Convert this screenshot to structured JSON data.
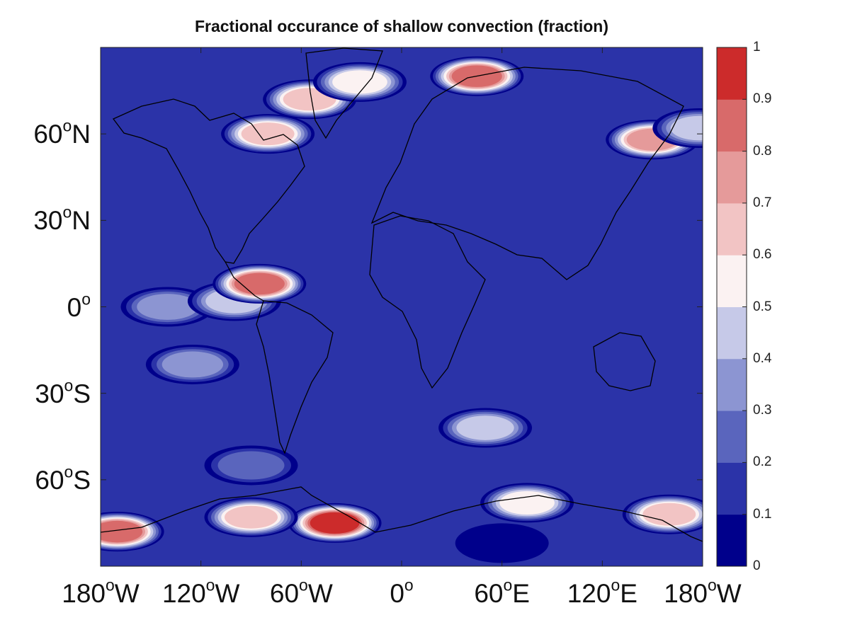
{
  "title": "Fractional occurance of shallow convection (fraction)",
  "lat_labels": [
    {
      "num": "60",
      "sup": "o",
      "hemi": "N",
      "lat": 60
    },
    {
      "num": "30",
      "sup": "o",
      "hemi": "N",
      "lat": 30
    },
    {
      "num": "0",
      "sup": "o",
      "hemi": "",
      "lat": 0
    },
    {
      "num": "30",
      "sup": "o",
      "hemi": "S",
      "lat": -30
    },
    {
      "num": "60",
      "sup": "o",
      "hemi": "S",
      "lat": -60
    }
  ],
  "lon_labels": [
    {
      "num": "180",
      "sup": "o",
      "hemi": "W",
      "lon": -180
    },
    {
      "num": "120",
      "sup": "o",
      "hemi": "W",
      "lon": -120
    },
    {
      "num": "60",
      "sup": "o",
      "hemi": "W",
      "lon": -60
    },
    {
      "num": "0",
      "sup": "o",
      "hemi": "",
      "lon": 0
    },
    {
      "num": "60",
      "sup": "o",
      "hemi": "E",
      "lon": 60
    },
    {
      "num": "120",
      "sup": "o",
      "hemi": "E",
      "lon": 120
    },
    {
      "num": "180",
      "sup": "o",
      "hemi": "W",
      "lon": 180
    }
  ],
  "colorbar": {
    "ticks": [
      "0",
      "0.1",
      "0.2",
      "0.3",
      "0.4",
      "0.5",
      "0.6",
      "0.7",
      "0.8",
      "0.9",
      "1"
    ],
    "colors": [
      "#00008b",
      "#2b33a8",
      "#5a65bd",
      "#8c95d2",
      "#c6c9e8",
      "#fbf2f2",
      "#f2c4c4",
      "#e59a9a",
      "#d86a6a",
      "#cc2b2b"
    ]
  },
  "map": {
    "lon_range": [
      -180,
      180
    ],
    "lat_range": [
      -90,
      90
    ],
    "background_level": 0.15,
    "features": [
      {
        "name": "itcz-pacific",
        "lon": -140,
        "lat": 0,
        "value": 0.42
      },
      {
        "name": "itcz-east-pacific",
        "lon": -100,
        "lat": 2,
        "value": 0.5
      },
      {
        "name": "panama-bight",
        "lon": -85,
        "lat": 8,
        "value": 0.85
      },
      {
        "name": "hudson-bay",
        "lon": -80,
        "lat": 60,
        "value": 0.72
      },
      {
        "name": "labrador-sea",
        "lon": -55,
        "lat": 72,
        "value": 0.65
      },
      {
        "name": "greenland-sea",
        "lon": -25,
        "lat": 78,
        "value": 0.6
      },
      {
        "name": "barents-sea",
        "lon": 45,
        "lat": 80,
        "value": 0.9
      },
      {
        "name": "sea-of-okhotsk",
        "lon": 150,
        "lat": 58,
        "value": 0.8
      },
      {
        "name": "bering-sea",
        "lon": 178,
        "lat": 62,
        "value": 0.45
      },
      {
        "name": "south-pacific-convergence",
        "lon": -125,
        "lat": -20,
        "value": 0.35
      },
      {
        "name": "south-indian-ocean",
        "lon": 50,
        "lat": -42,
        "value": 0.5
      },
      {
        "name": "southern-ocean-belt",
        "lon": -90,
        "lat": -55,
        "value": 0.3
      },
      {
        "name": "weddell-sea",
        "lon": -40,
        "lat": -75,
        "value": 0.95
      },
      {
        "name": "ross-sea",
        "lon": -170,
        "lat": -78,
        "value": 0.9
      },
      {
        "name": "bellingshausen-sea",
        "lon": -90,
        "lat": -73,
        "value": 0.7
      },
      {
        "name": "east-antarctic-coast",
        "lon": 75,
        "lat": -68,
        "value": 0.6
      },
      {
        "name": "george-v-land-coast",
        "lon": 160,
        "lat": -72,
        "value": 0.65
      },
      {
        "name": "antarctic-interior",
        "lon": 60,
        "lat": -82,
        "value": 0.02
      }
    ]
  }
}
